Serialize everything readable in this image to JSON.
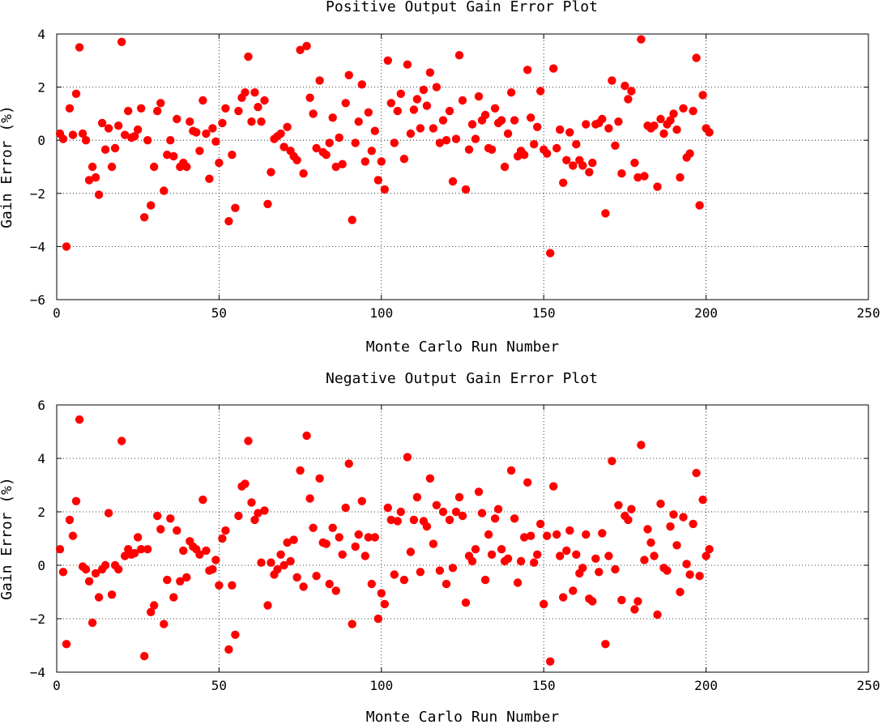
{
  "chart_data": [
    {
      "type": "scatter",
      "title": "Positive Output Gain Error Plot",
      "xlabel": "Monte Carlo Run Number",
      "ylabel": "Gain Error (%)",
      "xlim": [
        0,
        250
      ],
      "ylim": [
        -6,
        4
      ],
      "xticks": [
        "0",
        "50",
        "100",
        "150",
        "200",
        "250"
      ],
      "yticks": [
        "4",
        "2",
        "0",
        "−2",
        "−4",
        "−6"
      ],
      "xtick_values": [
        0,
        50,
        100,
        150,
        200,
        250
      ],
      "ytick_values": [
        4,
        2,
        0,
        -2,
        -4,
        -6
      ],
      "grid": true,
      "marker_color": "#ff0000",
      "x_start": 1,
      "y": [
        0.25,
        0.05,
        -4.0,
        1.2,
        0.2,
        1.75,
        3.5,
        0.25,
        0.0,
        -1.5,
        -1.0,
        -1.4,
        -2.05,
        0.65,
        -0.35,
        0.45,
        -1.0,
        -0.3,
        0.55,
        3.7,
        0.2,
        1.1,
        0.1,
        0.15,
        0.4,
        1.2,
        -2.9,
        0.0,
        -2.45,
        -1.0,
        1.1,
        1.4,
        -1.9,
        -0.55,
        0.0,
        -0.6,
        0.8,
        -1.0,
        -0.85,
        -1.0,
        0.7,
        0.35,
        0.3,
        -0.4,
        1.5,
        0.25,
        -1.45,
        0.45,
        -0.05,
        -0.85,
        0.65,
        1.2,
        -3.05,
        -0.55,
        -2.55,
        1.1,
        1.6,
        1.8,
        3.15,
        0.7,
        1.8,
        1.25,
        0.7,
        1.5,
        -2.4,
        -1.2,
        0.05,
        0.15,
        0.25,
        -0.25,
        0.5,
        -0.4,
        -0.6,
        -0.75,
        3.4,
        -1.25,
        3.55,
        1.6,
        1.0,
        -0.3,
        2.25,
        -0.45,
        -0.55,
        -0.1,
        0.85,
        -1.0,
        0.1,
        -0.9,
        1.4,
        2.45,
        -3.0,
        -0.1,
        0.7,
        2.1,
        -0.8,
        1.05,
        -0.4,
        0.35,
        -1.5,
        -0.8,
        -1.85,
        3.0,
        1.4,
        -0.1,
        1.1,
        1.75,
        -0.7,
        2.85,
        0.25,
        1.15,
        1.55,
        0.45,
        1.9,
        1.3,
        2.55,
        0.45,
        2.0,
        -0.1,
        0.75,
        0.0,
        1.1,
        -1.55,
        0.05,
        3.2,
        1.5,
        -1.85,
        -0.35,
        0.6,
        0.05,
        1.65,
        0.75,
        0.95,
        -0.3,
        -0.35,
        1.2,
        0.65,
        0.75,
        -1.0,
        0.25,
        1.8,
        0.75,
        -0.6,
        -0.4,
        -0.55,
        2.65,
        0.85,
        -0.15,
        0.5,
        1.85,
        -0.35,
        -0.5,
        -4.25,
        2.7,
        -0.3,
        0.4,
        -1.6,
        -0.75,
        0.3,
        -0.95,
        -0.15,
        -0.75,
        -0.95,
        0.6,
        -1.2,
        -0.85,
        0.6,
        0.65,
        0.8,
        -2.75,
        0.45,
        2.25,
        -0.2,
        0.7,
        -1.25,
        2.05,
        1.55,
        1.85,
        -0.85,
        -1.4,
        3.8,
        -1.35,
        0.55,
        0.45,
        0.55,
        -1.75,
        0.8,
        0.25,
        0.6,
        0.75,
        1.0,
        0.4,
        -1.4,
        1.2,
        -0.65,
        -0.5,
        1.1,
        3.1,
        -2.45,
        1.7,
        0.45,
        0.3
      ]
    },
    {
      "type": "scatter",
      "title": "Negative Output Gain Error Plot",
      "xlabel": "Monte Carlo Run Number",
      "ylabel": "Gain Error (%)",
      "xlim": [
        0,
        250
      ],
      "ylim": [
        -4,
        6
      ],
      "xticks": [
        "0",
        "50",
        "100",
        "150",
        "200",
        "250"
      ],
      "yticks": [
        "6",
        "4",
        "2",
        "0",
        "−2",
        "−4"
      ],
      "xtick_values": [
        0,
        50,
        100,
        150,
        200,
        250
      ],
      "ytick_values": [
        6,
        4,
        2,
        0,
        -2,
        -4
      ],
      "grid": true,
      "marker_color": "#ff0000",
      "x_start": 1,
      "y": [
        0.6,
        -0.25,
        -2.95,
        1.7,
        1.1,
        2.4,
        5.45,
        -0.05,
        -0.15,
        -0.6,
        -2.15,
        -0.3,
        -1.2,
        -0.15,
        0.0,
        1.95,
        -1.1,
        0.0,
        -0.15,
        4.65,
        0.35,
        0.6,
        0.4,
        0.45,
        1.05,
        0.6,
        -3.4,
        0.6,
        -1.75,
        -1.5,
        1.85,
        1.35,
        -2.2,
        -0.55,
        1.75,
        -1.2,
        1.3,
        -0.6,
        0.55,
        -0.45,
        0.9,
        0.7,
        0.6,
        0.4,
        2.45,
        0.55,
        -0.2,
        -0.15,
        0.2,
        -0.75,
        1.0,
        1.3,
        -3.15,
        -0.75,
        -2.6,
        1.85,
        2.95,
        3.05,
        4.65,
        2.35,
        1.7,
        1.95,
        0.1,
        2.05,
        -1.5,
        0.1,
        -0.35,
        -0.15,
        0.4,
        0.0,
        0.85,
        0.15,
        0.95,
        -0.45,
        3.55,
        -0.8,
        4.85,
        2.5,
        1.4,
        -0.4,
        3.25,
        0.85,
        0.8,
        -0.7,
        1.4,
        -0.95,
        1.05,
        0.4,
        2.15,
        3.8,
        -2.2,
        0.7,
        1.15,
        2.4,
        0.35,
        1.05,
        -0.7,
        1.05,
        -2.0,
        -1.05,
        -1.45,
        2.15,
        1.7,
        -0.35,
        1.65,
        2.0,
        -0.55,
        4.05,
        0.5,
        1.7,
        2.55,
        -0.25,
        1.65,
        1.45,
        3.25,
        0.8,
        2.25,
        -0.2,
        2.0,
        -0.7,
        1.7,
        -0.1,
        2.0,
        2.55,
        1.85,
        -1.4,
        0.35,
        0.15,
        0.6,
        2.75,
        1.95,
        -0.55,
        1.15,
        0.4,
        1.75,
        2.1,
        0.6,
        0.15,
        0.25,
        3.55,
        1.75,
        -0.65,
        0.15,
        1.05,
        3.1,
        1.1,
        0.1,
        0.4,
        1.55,
        -1.45,
        1.1,
        -3.6,
        2.95,
        1.15,
        0.35,
        -1.2,
        0.55,
        1.3,
        -0.95,
        0.4,
        -0.3,
        -0.1,
        1.15,
        -1.25,
        -1.35,
        0.25,
        -0.25,
        1.2,
        -2.95,
        0.35,
        3.9,
        -0.15,
        2.25,
        -1.3,
        1.85,
        1.7,
        2.1,
        -1.65,
        -1.35,
        4.5,
        0.2,
        1.35,
        0.85,
        0.35,
        -1.85,
        2.3,
        -0.1,
        -0.2,
        1.45,
        1.9,
        0.75,
        -1.0,
        1.8,
        0.05,
        -0.35,
        1.55,
        3.45,
        -0.4,
        2.45,
        0.35,
        0.6
      ]
    }
  ]
}
